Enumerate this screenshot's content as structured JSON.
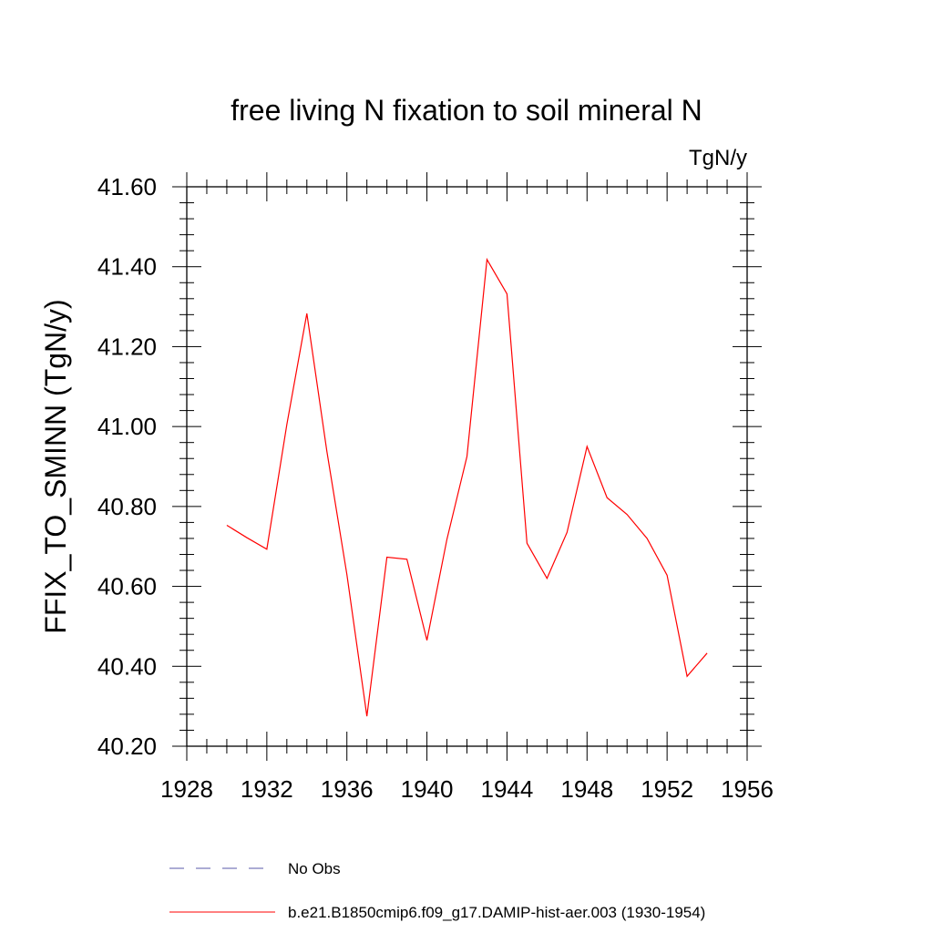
{
  "chart_data": {
    "type": "line",
    "title": "free living N fixation to soil mineral N",
    "units_label": "TgN/y",
    "ylabel": "FFIX_TO_SMINN  (TgN/y)",
    "xlabel": "",
    "xlim": [
      1928,
      1956
    ],
    "ylim": [
      40.2,
      41.6
    ],
    "x_ticks": [
      "1928",
      "1932",
      "1936",
      "1940",
      "1944",
      "1948",
      "1952",
      "1956"
    ],
    "y_ticks": [
      "40.20",
      "40.40",
      "40.60",
      "40.80",
      "41.00",
      "41.20",
      "41.40",
      "41.60"
    ],
    "x": [
      1930,
      1931,
      1932,
      1933,
      1934,
      1935,
      1936,
      1937,
      1938,
      1939,
      1940,
      1941,
      1942,
      1943,
      1944,
      1945,
      1946,
      1947,
      1948,
      1949,
      1950,
      1951,
      1952,
      1953,
      1954
    ],
    "series": [
      {
        "name": "b.e21.B1850cmip6.f09_g17.DAMIP-hist-aer.003 (1930-1954)",
        "color": "#ff0000",
        "values": [
          40.753,
          40.722,
          40.693,
          41.005,
          41.283,
          40.938,
          40.63,
          40.275,
          40.673,
          40.668,
          40.465,
          40.718,
          40.925,
          41.418,
          41.332,
          40.708,
          40.62,
          40.735,
          40.95,
          40.822,
          40.78,
          40.72,
          40.628,
          40.375,
          40.433
        ]
      }
    ],
    "legend": {
      "placement": "bottom",
      "entries": [
        {
          "label": "No Obs",
          "color": "#5a5aa8",
          "style": "dashed"
        },
        {
          "label": "b.e21.B1850cmip6.f09_g17.DAMIP-hist-aer.003 (1930-1954)",
          "color": "#ff0000",
          "style": "solid"
        }
      ]
    },
    "grid": false
  }
}
